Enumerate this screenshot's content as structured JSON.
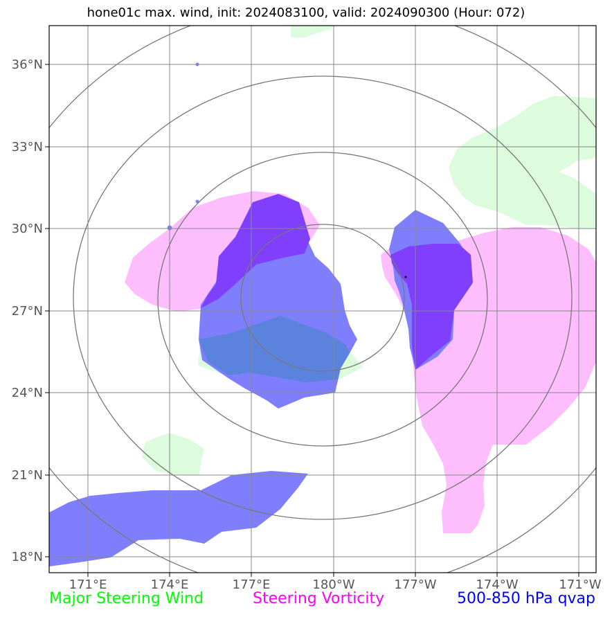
{
  "title": "hone01c max. wind, init: 2024083100, valid: 2024090300 (Hour: 072)",
  "lon_ticks": [
    "171°E",
    "174°E",
    "177°E",
    "180°W",
    "177°W",
    "174°W",
    "171°W"
  ],
  "lat_ticks": [
    "36°N",
    "33°N",
    "30°N",
    "27°N",
    "24°N",
    "21°N",
    "18°N"
  ],
  "legend": {
    "wind": "Major Steering Wind",
    "vorticity": "Steering Vorticity",
    "qvap": "500-850 hPa qvap"
  },
  "colors": {
    "wind": "#00ff00",
    "vorticity": "#ff00ff",
    "qvap": "#0000ff",
    "wind_fill": "#ddfcdd",
    "vort_fill": "#febefe",
    "qvap_fill": "#7f7ffd",
    "overlap_fill": "#7f3ffd",
    "grid": "#888888",
    "range_ring": "#777777"
  }
}
